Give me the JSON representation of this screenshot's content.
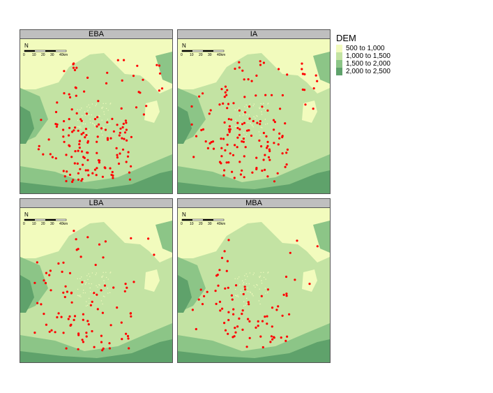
{
  "legend": {
    "title": "DEM",
    "classes": [
      {
        "label": "500 to 1,000",
        "color": "#f2fbbd"
      },
      {
        "label": "1,000 to 1,500",
        "color": "#c3e3a3"
      },
      {
        "label": "1,500 to 2,000",
        "color": "#8cc587"
      },
      {
        "label": "2,000 to 2,500",
        "color": "#5fa26b"
      }
    ]
  },
  "scale_bar": {
    "north_label": "N",
    "ticks": [
      "0",
      "10",
      "20",
      "30",
      "40km"
    ]
  },
  "panels": [
    {
      "title": "EBA",
      "site_count": 160
    },
    {
      "title": "IA",
      "site_count": 150
    },
    {
      "title": "LBA",
      "site_count": 95
    },
    {
      "title": "MBA",
      "site_count": 85
    }
  ],
  "colors": {
    "site_point": "#ff0000",
    "panel_header": "#bfbfbf",
    "frame": "#555555"
  }
}
